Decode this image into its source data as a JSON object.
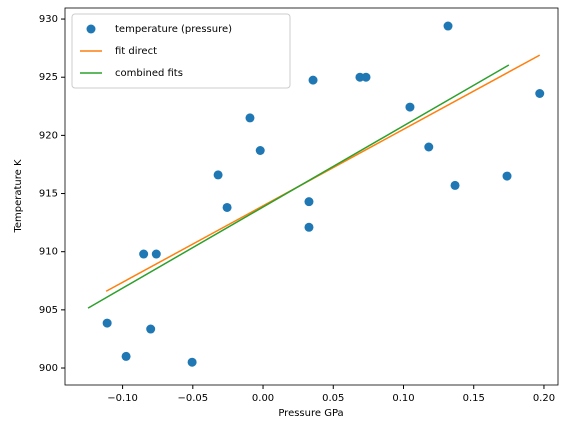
{
  "chart_data": {
    "type": "scatter",
    "x_label": "Pressure GPa",
    "y_label": "Temperature K",
    "xlim": [
      -0.141,
      0.21
    ],
    "ylim": [
      898.54,
      930.95
    ],
    "xticks": [
      {
        "value": -0.1,
        "label": "−0.10"
      },
      {
        "value": -0.05,
        "label": "−0.05"
      },
      {
        "value": 0,
        "label": "0.00"
      },
      {
        "value": 0.05,
        "label": "0.05"
      },
      {
        "value": 0.1,
        "label": "0.10"
      },
      {
        "value": 0.15,
        "label": "0.15"
      },
      {
        "value": 0.2,
        "label": "0.20"
      }
    ],
    "yticks": [
      900,
      905,
      910,
      915,
      920,
      925,
      930
    ],
    "legend": "upper left",
    "series": [
      {
        "name": "temperature (pressure)",
        "type": "scatter",
        "color": "#1f77b4",
        "x": [
          -0.111,
          -0.0975,
          -0.085,
          -0.076,
          -0.08,
          -0.0505,
          -0.032,
          -0.0256,
          -0.0093,
          -0.002,
          0.0327,
          0.0327,
          0.0356,
          0.069,
          0.0733,
          0.1046,
          0.118,
          0.1317,
          0.1367,
          0.1737,
          0.197
        ],
        "values": [
          903.86,
          901.0,
          909.8,
          909.8,
          903.35,
          900.5,
          916.6,
          913.8,
          921.5,
          918.7,
          914.3,
          912.1,
          924.75,
          925.0,
          925.0,
          922.43,
          919.0,
          929.4,
          915.7,
          916.5,
          923.6
        ]
      },
      {
        "name": "fit direct",
        "type": "line",
        "color": "#ff7f0e",
        "x": [
          -0.1117,
          0.197
        ],
        "values": [
          906.6,
          926.9
        ]
      },
      {
        "name": "combined fits",
        "type": "line",
        "color": "#2ca02c",
        "x": [
          -0.1246,
          0.175
        ],
        "values": [
          905.15,
          926.05
        ]
      }
    ]
  }
}
